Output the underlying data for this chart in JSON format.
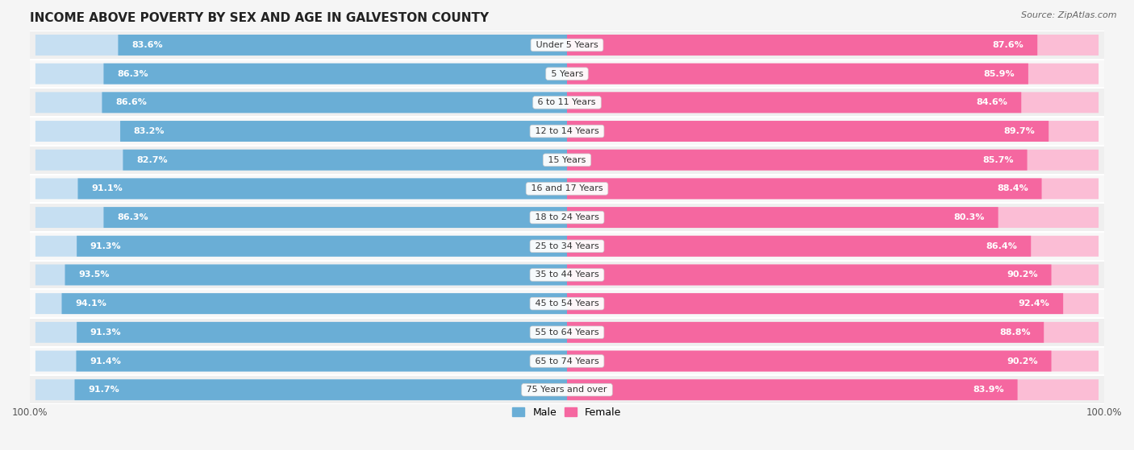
{
  "title": "INCOME ABOVE POVERTY BY SEX AND AGE IN GALVESTON COUNTY",
  "source": "Source: ZipAtlas.com",
  "categories": [
    "Under 5 Years",
    "5 Years",
    "6 to 11 Years",
    "12 to 14 Years",
    "15 Years",
    "16 and 17 Years",
    "18 to 24 Years",
    "25 to 34 Years",
    "35 to 44 Years",
    "45 to 54 Years",
    "55 to 64 Years",
    "65 to 74 Years",
    "75 Years and over"
  ],
  "male_values": [
    83.6,
    86.3,
    86.6,
    83.2,
    82.7,
    91.1,
    86.3,
    91.3,
    93.5,
    94.1,
    91.3,
    91.4,
    91.7
  ],
  "female_values": [
    87.6,
    85.9,
    84.6,
    89.7,
    85.7,
    88.4,
    80.3,
    86.4,
    90.2,
    92.4,
    88.8,
    90.2,
    83.9
  ],
  "male_color_dark": "#6aaed6",
  "male_color_light": "#c6dff2",
  "female_color_dark": "#f567a0",
  "female_color_light": "#fbbdd5",
  "row_bg_odd": "#efefef",
  "row_bg_even": "#f8f8f8",
  "background_color": "#f5f5f5",
  "bar_height": 0.72,
  "legend_male": "Male",
  "legend_female": "Female",
  "title_fontsize": 11,
  "label_fontsize": 8,
  "category_fontsize": 8,
  "source_fontsize": 8
}
